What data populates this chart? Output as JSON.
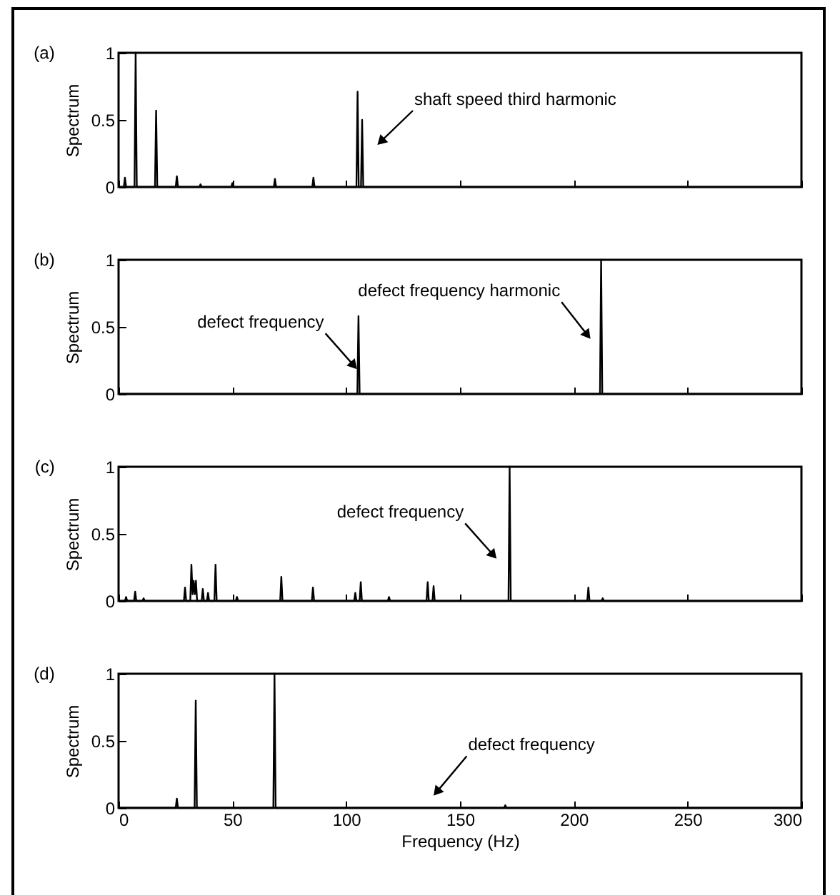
{
  "chart_data": [
    {
      "type": "line",
      "title": "(a)",
      "ylabel": "Spectrum",
      "xlim": [
        0,
        300
      ],
      "xticks": [
        0,
        50,
        100,
        150,
        200,
        250,
        300
      ],
      "ylim": [
        0,
        1
      ],
      "yticks": [
        0,
        0.5,
        1
      ],
      "tick_labels": "y",
      "series": [
        {
          "color": "#000000",
          "x": [
            0,
            2.3,
            2.8,
            3.3,
            7,
            7.5,
            8,
            16,
            16.5,
            17,
            25.1,
            25.6,
            26.1,
            35.5,
            36,
            36.5,
            49.5,
            50,
            50.5,
            68.2,
            68.7,
            69.2,
            85.1,
            85.6,
            86.1,
            104.5,
            105,
            105.5,
            106.5,
            107,
            107.5,
            300
          ],
          "values": [
            0,
            0,
            0.07,
            0,
            0,
            1,
            0,
            0,
            0.57,
            0,
            0,
            0.08,
            0,
            0,
            0.02,
            0,
            0,
            0.03,
            0,
            0,
            0.06,
            0,
            0,
            0.07,
            0,
            0,
            0.71,
            0,
            0,
            0.5,
            0,
            0
          ]
        }
      ],
      "annotations": [
        "shaft speed third harmonic"
      ]
    },
    {
      "type": "line",
      "title": "(b)",
      "ylabel": "Spectrum",
      "xlim": [
        0,
        300
      ],
      "xticks": [
        0,
        50,
        100,
        150,
        200,
        250,
        300
      ],
      "ylim": [
        0,
        1
      ],
      "yticks": [
        0,
        0.5,
        1
      ],
      "tick_labels": "y",
      "series": [
        {
          "color": "#000000",
          "x": [
            0,
            104.9,
            105.4,
            105.9,
            211.5,
            212,
            212.5,
            300
          ],
          "values": [
            0,
            0,
            0.58,
            0,
            0,
            1,
            0,
            0
          ]
        }
      ],
      "annotations": [
        {
          "text": "defect frequency",
          "x": 105,
          "y": 0.18
        },
        "defect frequency harmonic"
      ]
    },
    {
      "type": "line",
      "title": "(c)",
      "ylabel": "Spectrum",
      "xlim": [
        0,
        300
      ],
      "xticks": [
        0,
        50,
        100,
        150,
        200,
        250,
        300
      ],
      "ylim": [
        0,
        1
      ],
      "yticks": [
        0,
        0.5,
        1
      ],
      "tick_labels": "y",
      "series": [
        {
          "color": "#000000",
          "x": [
            0,
            2.8,
            3.3,
            3.8,
            6.8,
            7.3,
            7.8,
            10.5,
            11,
            11.5,
            28.7,
            29.2,
            29.7,
            31.5,
            32,
            32.5,
            33,
            33.5,
            34,
            34.5,
            36.5,
            37,
            37.5,
            38.8,
            39.3,
            39.8,
            42.1,
            42.6,
            43.1,
            51.5,
            52,
            52.5,
            71,
            71.5,
            72,
            84.9,
            85.4,
            85.9,
            103.5,
            104,
            104.5,
            105.9,
            106.4,
            106.9,
            118.3,
            118.8,
            119.3,
            135.3,
            135.8,
            136.3,
            137.9,
            138.4,
            138.9,
            171.3,
            171.8,
            172.3,
            205.9,
            206.4,
            206.9,
            212.2,
            212.7,
            213.2,
            300
          ],
          "values": [
            0,
            0,
            0.03,
            0,
            0,
            0.07,
            0,
            0,
            0.02,
            0,
            0,
            0.1,
            0,
            0,
            0.27,
            0.05,
            0.15,
            0.05,
            0.15,
            0,
            0,
            0.09,
            0,
            0,
            0.06,
            0,
            0,
            0.27,
            0,
            0,
            0.03,
            0,
            0,
            0.18,
            0,
            0,
            0.1,
            0,
            0,
            0.06,
            0,
            0,
            0.14,
            0,
            0,
            0.03,
            0,
            0,
            0.14,
            0,
            0,
            0.11,
            0,
            0,
            1,
            0,
            0,
            0.1,
            0,
            0,
            0.02,
            0,
            0
          ]
        }
      ],
      "annotations": [
        "defect frequency"
      ]
    },
    {
      "type": "line",
      "title": "(d)",
      "xlabel": "Frequency (Hz)",
      "ylabel": "Spectrum",
      "xlim": [
        0,
        300
      ],
      "xticks": [
        0,
        50,
        100,
        150,
        200,
        250,
        300
      ],
      "ylim": [
        0,
        1
      ],
      "yticks": [
        0,
        0.5,
        1
      ],
      "series": [
        {
          "color": "#000000",
          "x": [
            0,
            25.1,
            25.6,
            26.1,
            33.4,
            33.9,
            34.4,
            68,
            68.5,
            69,
            169.4,
            169.9,
            170.4,
            300
          ],
          "values": [
            0,
            0,
            0.07,
            0,
            0,
            0.8,
            0,
            0,
            1,
            0,
            0,
            0.02,
            0,
            0
          ]
        }
      ],
      "annotations": [
        "defect frequency"
      ]
    }
  ]
}
